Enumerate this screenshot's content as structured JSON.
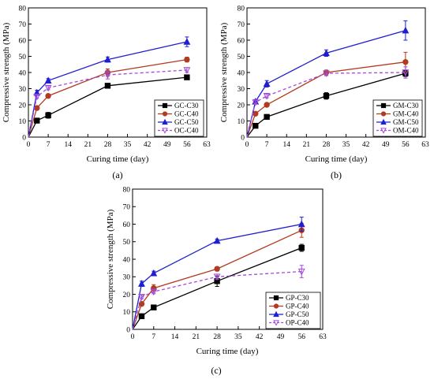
{
  "chart_data": [
    {
      "type": "line",
      "panel_label": "(a)",
      "xlabel": "Curing time (day)",
      "ylabel": "Compressive strength (MPa)",
      "xlim": [
        0,
        63
      ],
      "ylim": [
        0,
        80
      ],
      "xticks": [
        0,
        7,
        14,
        21,
        28,
        35,
        42,
        49,
        56,
        63
      ],
      "yticks": [
        0,
        10,
        20,
        30,
        40,
        50,
        60,
        70,
        80
      ],
      "legend_position": "bottom-right",
      "series": [
        {
          "name": "GC-C30",
          "color": "#000000",
          "marker": "square",
          "dashed": false,
          "x": [
            0,
            3,
            7,
            28,
            56
          ],
          "y": [
            0,
            10.2,
            13.5,
            31.8,
            37.0
          ],
          "err": [
            0,
            0.6,
            1.8,
            1.0,
            0.8
          ]
        },
        {
          "name": "GC-C40",
          "color": "#b23a1e",
          "marker": "circle",
          "dashed": false,
          "x": [
            0,
            3,
            7,
            28,
            56
          ],
          "y": [
            0,
            18.0,
            25.5,
            40.0,
            48.0
          ],
          "err": [
            0,
            0.8,
            1.0,
            2.2,
            1.5
          ]
        },
        {
          "name": "GC-C50",
          "color": "#1f1fd0",
          "marker": "triangle",
          "dashed": false,
          "x": [
            0,
            3,
            7,
            28,
            56
          ],
          "y": [
            0,
            27.5,
            35.0,
            48.0,
            59.0
          ],
          "err": [
            0,
            1.5,
            1.2,
            1.6,
            3.0
          ]
        },
        {
          "name": "OC-C40",
          "color": "#a24ad8",
          "marker": "triangle-down",
          "dashed": true,
          "x": [
            0,
            3,
            7,
            28,
            56
          ],
          "y": [
            0,
            25.0,
            30.5,
            38.5,
            41.5
          ],
          "err": [
            0,
            1.0,
            1.2,
            2.5,
            1.5
          ]
        }
      ]
    },
    {
      "type": "line",
      "panel_label": "(b)",
      "xlabel": "Curing time (day)",
      "ylabel": "Compressive strength (MPa)",
      "xlim": [
        0,
        63
      ],
      "ylim": [
        0,
        80
      ],
      "xticks": [
        0,
        7,
        14,
        21,
        28,
        35,
        42,
        49,
        56,
        63
      ],
      "yticks": [
        0,
        10,
        20,
        30,
        40,
        50,
        60,
        70,
        80
      ],
      "legend_position": "bottom-right",
      "series": [
        {
          "name": "GM-C30",
          "color": "#000000",
          "marker": "square",
          "dashed": false,
          "x": [
            0,
            3,
            7,
            28,
            56
          ],
          "y": [
            0,
            7.0,
            12.5,
            25.5,
            39.5
          ],
          "err": [
            0,
            0.5,
            0.8,
            2.0,
            2.0
          ]
        },
        {
          "name": "GM-C40",
          "color": "#b23a1e",
          "marker": "circle",
          "dashed": false,
          "x": [
            0,
            3,
            7,
            28,
            56
          ],
          "y": [
            0,
            14.5,
            20.0,
            40.0,
            46.5
          ],
          "err": [
            0,
            0.8,
            1.0,
            1.5,
            6.0
          ]
        },
        {
          "name": "GM-C50",
          "color": "#1f1fd0",
          "marker": "triangle",
          "dashed": false,
          "x": [
            0,
            3,
            7,
            28,
            56
          ],
          "y": [
            0,
            22.0,
            33.0,
            52.0,
            66.0
          ],
          "err": [
            0,
            1.2,
            2.0,
            2.0,
            6.0
          ]
        },
        {
          "name": "OM-C40",
          "color": "#a24ad8",
          "marker": "triangle-down",
          "dashed": true,
          "x": [
            0,
            3,
            7,
            28,
            56
          ],
          "y": [
            0,
            21.5,
            25.5,
            39.5,
            40.0
          ],
          "err": [
            0,
            1.0,
            1.2,
            1.5,
            3.5
          ]
        }
      ]
    },
    {
      "type": "line",
      "panel_label": "(c)",
      "xlabel": "Curing time (day)",
      "ylabel": "Compressive strength (MPa)",
      "xlim": [
        0,
        63
      ],
      "ylim": [
        0,
        80
      ],
      "xticks": [
        0,
        7,
        14,
        21,
        28,
        35,
        42,
        49,
        56,
        63
      ],
      "yticks": [
        0,
        10,
        20,
        30,
        40,
        50,
        60,
        70,
        80
      ],
      "legend_position": "bottom-right",
      "series": [
        {
          "name": "GP-C30",
          "color": "#000000",
          "marker": "square",
          "dashed": false,
          "x": [
            0,
            3,
            7,
            28,
            56
          ],
          "y": [
            0,
            7.5,
            12.5,
            27.5,
            46.5
          ],
          "err": [
            0,
            0.6,
            1.0,
            3.0,
            2.0
          ]
        },
        {
          "name": "GP-C40",
          "color": "#b23a1e",
          "marker": "circle",
          "dashed": false,
          "x": [
            0,
            3,
            7,
            28,
            56
          ],
          "y": [
            0,
            14.5,
            23.5,
            34.5,
            56.5
          ],
          "err": [
            0,
            0.8,
            2.0,
            1.2,
            4.0
          ]
        },
        {
          "name": "GP-C50",
          "color": "#1f1fd0",
          "marker": "triangle",
          "dashed": false,
          "x": [
            0,
            3,
            7,
            28,
            56
          ],
          "y": [
            0,
            26.0,
            32.0,
            50.5,
            60.0
          ],
          "err": [
            0,
            1.5,
            1.2,
            1.0,
            4.0
          ]
        },
        {
          "name": "OP-C40",
          "color": "#a24ad8",
          "marker": "triangle-down",
          "dashed": true,
          "x": [
            0,
            3,
            7,
            28,
            56
          ],
          "y": [
            0,
            18.5,
            21.5,
            30.0,
            33.0
          ],
          "err": [
            0,
            1.0,
            1.2,
            1.5,
            3.5
          ]
        }
      ]
    }
  ]
}
